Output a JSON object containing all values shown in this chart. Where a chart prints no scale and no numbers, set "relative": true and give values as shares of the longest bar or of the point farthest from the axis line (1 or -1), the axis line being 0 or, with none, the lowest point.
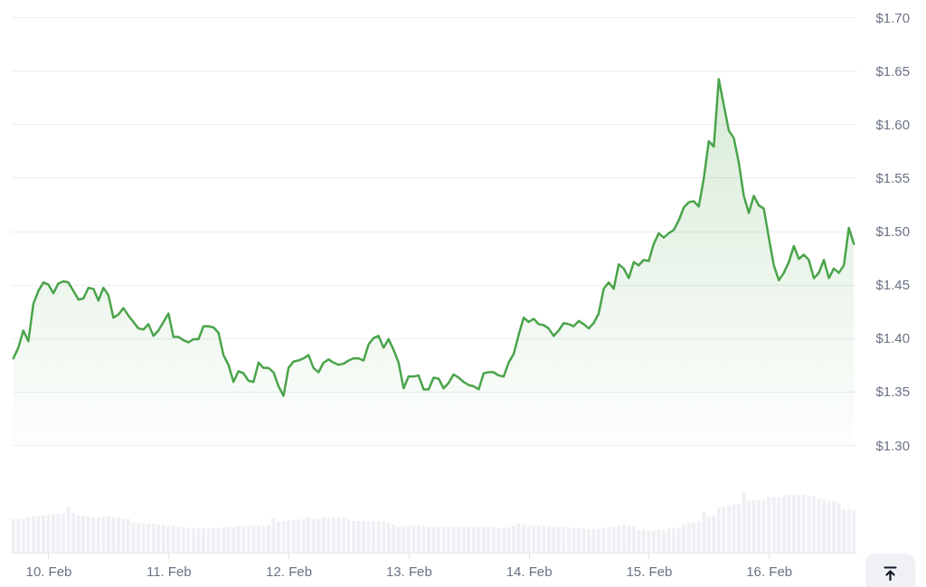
{
  "chart_data": [
    {
      "type": "area",
      "color": "#4aa44a",
      "x": [
        "--02-09T17:00",
        "--02-09T18:00",
        "--02-09T19:00",
        "--02-09T20:00",
        "--02-09T21:00",
        "--02-09T22:00",
        "--02-09T23:00",
        "--02-10T00:00",
        "--02-10T01:00",
        "--02-10T02:00",
        "--02-10T03:00",
        "--02-10T04:00",
        "--02-10T05:00",
        "--02-10T06:00",
        "--02-10T07:00",
        "--02-10T08:00",
        "--02-10T09:00",
        "--02-10T10:00",
        "--02-10T11:00",
        "--02-10T12:00",
        "--02-10T13:00",
        "--02-10T14:00",
        "--02-10T15:00",
        "--02-10T16:00",
        "--02-10T17:00",
        "--02-10T18:00",
        "--02-10T19:00",
        "--02-10T20:00",
        "--02-10T21:00",
        "--02-10T22:00",
        "--02-10T23:00",
        "--02-11T00:00",
        "--02-11T01:00",
        "--02-11T02:00",
        "--02-11T03:00",
        "--02-11T04:00",
        "--02-11T05:00",
        "--02-11T06:00",
        "--02-11T07:00",
        "--02-11T08:00",
        "--02-11T09:00",
        "--02-11T10:00",
        "--02-11T11:00",
        "--02-11T12:00",
        "--02-11T13:00",
        "--02-11T14:00",
        "--02-11T15:00",
        "--02-11T16:00",
        "--02-11T17:00",
        "--02-11T18:00",
        "--02-11T19:00",
        "--02-11T20:00",
        "--02-11T21:00",
        "--02-11T22:00",
        "--02-11T23:00",
        "--02-12T00:00",
        "--02-12T01:00",
        "--02-12T02:00",
        "--02-12T03:00",
        "--02-12T04:00",
        "--02-12T05:00",
        "--02-12T06:00",
        "--02-12T07:00",
        "--02-12T08:00",
        "--02-12T09:00",
        "--02-12T10:00",
        "--02-12T11:00",
        "--02-12T12:00",
        "--02-12T13:00",
        "--02-12T14:00",
        "--02-12T15:00",
        "--02-12T16:00",
        "--02-12T17:00",
        "--02-12T18:00",
        "--02-12T19:00",
        "--02-12T20:00",
        "--02-12T21:00",
        "--02-12T22:00",
        "--02-12T23:00",
        "--02-13T00:00",
        "--02-13T01:00",
        "--02-13T02:00",
        "--02-13T03:00",
        "--02-13T04:00",
        "--02-13T05:00",
        "--02-13T06:00",
        "--02-13T07:00",
        "--02-13T08:00",
        "--02-13T09:00",
        "--02-13T10:00",
        "--02-13T11:00",
        "--02-13T12:00",
        "--02-13T13:00",
        "--02-13T14:00",
        "--02-13T15:00",
        "--02-13T16:00",
        "--02-13T17:00",
        "--02-13T18:00",
        "--02-13T19:00",
        "--02-13T20:00",
        "--02-13T21:00",
        "--02-13T22:00",
        "--02-13T23:00",
        "--02-14T00:00",
        "--02-14T01:00",
        "--02-14T02:00",
        "--02-14T03:00",
        "--02-14T04:00",
        "--02-14T05:00",
        "--02-14T06:00",
        "--02-14T07:00",
        "--02-14T08:00",
        "--02-14T09:00",
        "--02-14T10:00",
        "--02-14T11:00",
        "--02-14T12:00",
        "--02-14T13:00",
        "--02-14T14:00",
        "--02-14T15:00",
        "--02-14T16:00",
        "--02-14T17:00",
        "--02-14T18:00",
        "--02-14T19:00",
        "--02-14T20:00",
        "--02-14T21:00",
        "--02-14T22:00",
        "--02-14T23:00",
        "--02-15T00:00",
        "--02-15T01:00",
        "--02-15T02:00",
        "--02-15T03:00",
        "--02-15T04:00",
        "--02-15T05:00",
        "--02-15T06:00",
        "--02-15T07:00",
        "--02-15T08:00",
        "--02-15T09:00",
        "--02-15T10:00",
        "--02-15T11:00",
        "--02-15T12:00",
        "--02-15T13:00",
        "--02-15T14:00",
        "--02-15T15:00",
        "--02-15T16:00",
        "--02-15T17:00",
        "--02-15T18:00",
        "--02-15T19:00",
        "--02-15T20:00",
        "--02-15T21:00",
        "--02-15T22:00",
        "--02-15T23:00",
        "--02-16T00:00",
        "--02-16T01:00",
        "--02-16T02:00",
        "--02-16T03:00",
        "--02-16T04:00",
        "--02-16T05:00",
        "--02-16T06:00",
        "--02-16T07:00",
        "--02-16T08:00",
        "--02-16T09:00",
        "--02-16T10:00",
        "--02-16T11:00",
        "--02-16T12:00",
        "--02-16T13:00",
        "--02-16T14:00",
        "--02-16T15:00",
        "--02-16T16:00",
        "--02-16T17:00"
      ],
      "values": [
        1.381,
        1.391,
        1.407,
        1.397,
        1.432,
        1.444,
        1.452,
        1.45,
        1.442,
        1.451,
        1.453,
        1.452,
        1.444,
        1.436,
        1.437,
        1.447,
        1.446,
        1.435,
        1.447,
        1.44,
        1.419,
        1.422,
        1.428,
        1.421,
        1.415,
        1.409,
        1.408,
        1.413,
        1.402,
        1.407,
        1.415,
        1.423,
        1.401,
        1.401,
        1.398,
        1.396,
        1.399,
        1.399,
        1.411,
        1.411,
        1.41,
        1.405,
        1.384,
        1.375,
        1.359,
        1.369,
        1.367,
        1.36,
        1.359,
        1.377,
        1.372,
        1.372,
        1.368,
        1.355,
        1.346,
        1.372,
        1.378,
        1.379,
        1.381,
        1.384,
        1.372,
        1.368,
        1.377,
        1.38,
        1.377,
        1.375,
        1.376,
        1.379,
        1.381,
        1.381,
        1.379,
        1.394,
        1.4,
        1.402,
        1.391,
        1.399,
        1.389,
        1.377,
        1.353,
        1.364,
        1.364,
        1.365,
        1.352,
        1.352,
        1.363,
        1.362,
        1.353,
        1.358,
        1.366,
        1.363,
        1.359,
        1.356,
        1.355,
        1.352,
        1.367,
        1.368,
        1.368,
        1.365,
        1.364,
        1.377,
        1.385,
        1.403,
        1.419,
        1.415,
        1.418,
        1.413,
        1.412,
        1.409,
        1.402,
        1.407,
        1.414,
        1.413,
        1.411,
        1.416,
        1.413,
        1.409,
        1.414,
        1.423,
        1.446,
        1.452,
        1.446,
        1.469,
        1.465,
        1.456,
        1.471,
        1.468,
        1.473,
        1.472,
        1.488,
        1.498,
        1.494,
        1.498,
        1.501,
        1.51,
        1.522,
        1.527,
        1.528,
        1.523,
        1.549,
        1.584,
        1.579,
        1.642,
        1.618,
        1.594,
        1.587,
        1.564,
        1.533,
        1.517,
        1.533,
        1.524,
        1.521,
        1.494,
        1.468,
        1.454,
        1.461,
        1.471,
        1.486,
        1.474,
        1.478,
        1.473,
        1.456,
        1.461,
        1.473,
        1.456,
        1.465,
        1.461,
        1.468,
        1.503,
        1.488
      ],
      "xlim": [
        "--02-09T16:30",
        "--02-16T17:30"
      ],
      "ylim": [
        1.3,
        1.7
      ],
      "yticks": [
        {
          "value": 1.3,
          "label": "$1.30"
        },
        {
          "value": 1.35,
          "label": "$1.35"
        },
        {
          "value": 1.4,
          "label": "$1.40"
        },
        {
          "value": 1.45,
          "label": "$1.45"
        },
        {
          "value": 1.5,
          "label": "$1.50"
        },
        {
          "value": 1.55,
          "label": "$1.55"
        },
        {
          "value": 1.6,
          "label": "$1.60"
        },
        {
          "value": 1.65,
          "label": "$1.65"
        },
        {
          "value": 1.7,
          "label": "$1.70"
        }
      ],
      "grid": "y",
      "tick_labels": "y"
    },
    {
      "type": "bar",
      "color": "#eef0f4",
      "relative": true,
      "x": [
        "--02-09T17:00",
        "--02-09T18:00",
        "--02-09T19:00",
        "--02-09T20:00",
        "--02-09T21:00",
        "--02-09T22:00",
        "--02-09T23:00",
        "--02-10T00:00",
        "--02-10T01:00",
        "--02-10T02:00",
        "--02-10T03:00",
        "--02-10T04:00",
        "--02-10T05:00",
        "--02-10T06:00",
        "--02-10T07:00",
        "--02-10T08:00",
        "--02-10T09:00",
        "--02-10T10:00",
        "--02-10T11:00",
        "--02-10T12:00",
        "--02-10T13:00",
        "--02-10T14:00",
        "--02-10T15:00",
        "--02-10T16:00",
        "--02-10T17:00",
        "--02-10T18:00",
        "--02-10T19:00",
        "--02-10T20:00",
        "--02-10T21:00",
        "--02-10T22:00",
        "--02-10T23:00",
        "--02-11T00:00",
        "--02-11T01:00",
        "--02-11T02:00",
        "--02-11T03:00",
        "--02-11T04:00",
        "--02-11T05:00",
        "--02-11T06:00",
        "--02-11T07:00",
        "--02-11T08:00",
        "--02-11T09:00",
        "--02-11T10:00",
        "--02-11T11:00",
        "--02-11T12:00",
        "--02-11T13:00",
        "--02-11T14:00",
        "--02-11T15:00",
        "--02-11T16:00",
        "--02-11T17:00",
        "--02-11T18:00",
        "--02-11T19:00",
        "--02-11T20:00",
        "--02-11T21:00",
        "--02-11T22:00",
        "--02-11T23:00",
        "--02-12T00:00",
        "--02-12T01:00",
        "--02-12T02:00",
        "--02-12T03:00",
        "--02-12T04:00",
        "--02-12T05:00",
        "--02-12T06:00",
        "--02-12T07:00",
        "--02-12T08:00",
        "--02-12T09:00",
        "--02-12T10:00",
        "--02-12T11:00",
        "--02-12T12:00",
        "--02-12T13:00",
        "--02-12T14:00",
        "--02-12T15:00",
        "--02-12T16:00",
        "--02-12T17:00",
        "--02-12T18:00",
        "--02-12T19:00",
        "--02-12T20:00",
        "--02-12T21:00",
        "--02-12T22:00",
        "--02-12T23:00",
        "--02-13T00:00",
        "--02-13T01:00",
        "--02-13T02:00",
        "--02-13T03:00",
        "--02-13T04:00",
        "--02-13T05:00",
        "--02-13T06:00",
        "--02-13T07:00",
        "--02-13T08:00",
        "--02-13T09:00",
        "--02-13T10:00",
        "--02-13T11:00",
        "--02-13T12:00",
        "--02-13T13:00",
        "--02-13T14:00",
        "--02-13T15:00",
        "--02-13T16:00",
        "--02-13T17:00",
        "--02-13T18:00",
        "--02-13T19:00",
        "--02-13T20:00",
        "--02-13T21:00",
        "--02-13T22:00",
        "--02-13T23:00",
        "--02-14T00:00",
        "--02-14T01:00",
        "--02-14T02:00",
        "--02-14T03:00",
        "--02-14T04:00",
        "--02-14T05:00",
        "--02-14T06:00",
        "--02-14T07:00",
        "--02-14T08:00",
        "--02-14T09:00",
        "--02-14T10:00",
        "--02-14T11:00",
        "--02-14T12:00",
        "--02-14T13:00",
        "--02-14T14:00",
        "--02-14T15:00",
        "--02-14T16:00",
        "--02-14T17:00",
        "--02-14T18:00",
        "--02-14T19:00",
        "--02-14T20:00",
        "--02-14T21:00",
        "--02-14T22:00",
        "--02-14T23:00",
        "--02-15T00:00",
        "--02-15T01:00",
        "--02-15T02:00",
        "--02-15T03:00",
        "--02-15T04:00",
        "--02-15T05:00",
        "--02-15T06:00",
        "--02-15T07:00",
        "--02-15T08:00",
        "--02-15T09:00",
        "--02-15T10:00",
        "--02-15T11:00",
        "--02-15T12:00",
        "--02-15T13:00",
        "--02-15T14:00",
        "--02-15T15:00",
        "--02-15T16:00",
        "--02-15T17:00",
        "--02-15T18:00",
        "--02-15T19:00",
        "--02-15T20:00",
        "--02-15T21:00",
        "--02-15T22:00",
        "--02-15T23:00",
        "--02-16T00:00",
        "--02-16T01:00",
        "--02-16T02:00",
        "--02-16T03:00",
        "--02-16T04:00",
        "--02-16T05:00",
        "--02-16T06:00",
        "--02-16T07:00",
        "--02-16T08:00",
        "--02-16T09:00",
        "--02-16T10:00",
        "--02-16T11:00",
        "--02-16T12:00",
        "--02-16T13:00",
        "--02-16T14:00",
        "--02-16T15:00",
        "--02-16T16:00",
        "--02-16T17:00"
      ],
      "values": [
        0.547,
        0.547,
        0.547,
        0.571,
        0.591,
        0.591,
        0.606,
        0.606,
        0.63,
        0.63,
        0.63,
        0.744,
        0.65,
        0.606,
        0.606,
        0.591,
        0.571,
        0.571,
        0.591,
        0.591,
        0.591,
        0.571,
        0.547,
        0.547,
        0.49,
        0.49,
        0.473,
        0.473,
        0.473,
        0.458,
        0.458,
        0.433,
        0.433,
        0.414,
        0.414,
        0.394,
        0.394,
        0.394,
        0.394,
        0.394,
        0.394,
        0.394,
        0.414,
        0.414,
        0.414,
        0.433,
        0.433,
        0.433,
        0.433,
        0.433,
        0.433,
        0.458,
        0.571,
        0.512,
        0.512,
        0.532,
        0.532,
        0.532,
        0.547,
        0.571,
        0.547,
        0.547,
        0.571,
        0.571,
        0.571,
        0.571,
        0.571,
        0.547,
        0.512,
        0.512,
        0.512,
        0.512,
        0.512,
        0.512,
        0.512,
        0.49,
        0.458,
        0.414,
        0.433,
        0.433,
        0.433,
        0.433,
        0.433,
        0.414,
        0.414,
        0.414,
        0.414,
        0.414,
        0.414,
        0.414,
        0.414,
        0.414,
        0.414,
        0.414,
        0.414,
        0.414,
        0.414,
        0.394,
        0.394,
        0.414,
        0.433,
        0.473,
        0.458,
        0.433,
        0.433,
        0.433,
        0.433,
        0.433,
        0.414,
        0.414,
        0.414,
        0.414,
        0.394,
        0.394,
        0.394,
        0.38,
        0.38,
        0.38,
        0.404,
        0.414,
        0.424,
        0.433,
        0.453,
        0.433,
        0.433,
        0.374,
        0.374,
        0.355,
        0.355,
        0.374,
        0.374,
        0.394,
        0.394,
        0.414,
        0.453,
        0.473,
        0.49,
        0.512,
        0.665,
        0.59,
        0.61,
        0.729,
        0.749,
        0.768,
        0.788,
        0.788,
        1,
        0.842,
        0.862,
        0.862,
        0.862,
        0.9,
        0.9,
        0.9,
        0.92,
        0.94,
        0.94,
        0.94,
        0.94,
        0.92,
        0.92,
        0.88,
        0.862,
        0.842,
        0.842,
        0.8,
        0.71,
        0.71,
        0.69
      ],
      "xlim": [
        "--02-09T16:30",
        "--02-16T17:30"
      ],
      "xticks": [
        {
          "value": "--02-10T00:00",
          "label": "10. Feb"
        },
        {
          "value": "--02-11T00:00",
          "label": "11. Feb"
        },
        {
          "value": "--02-12T00:00",
          "label": "12. Feb"
        },
        {
          "value": "--02-13T00:00",
          "label": "13. Feb"
        },
        {
          "value": "--02-14T00:00",
          "label": "14. Feb"
        },
        {
          "value": "--02-15T00:00",
          "label": "15. Feb"
        },
        {
          "value": "--02-16T00:00",
          "label": "16. Feb"
        }
      ]
    }
  ]
}
